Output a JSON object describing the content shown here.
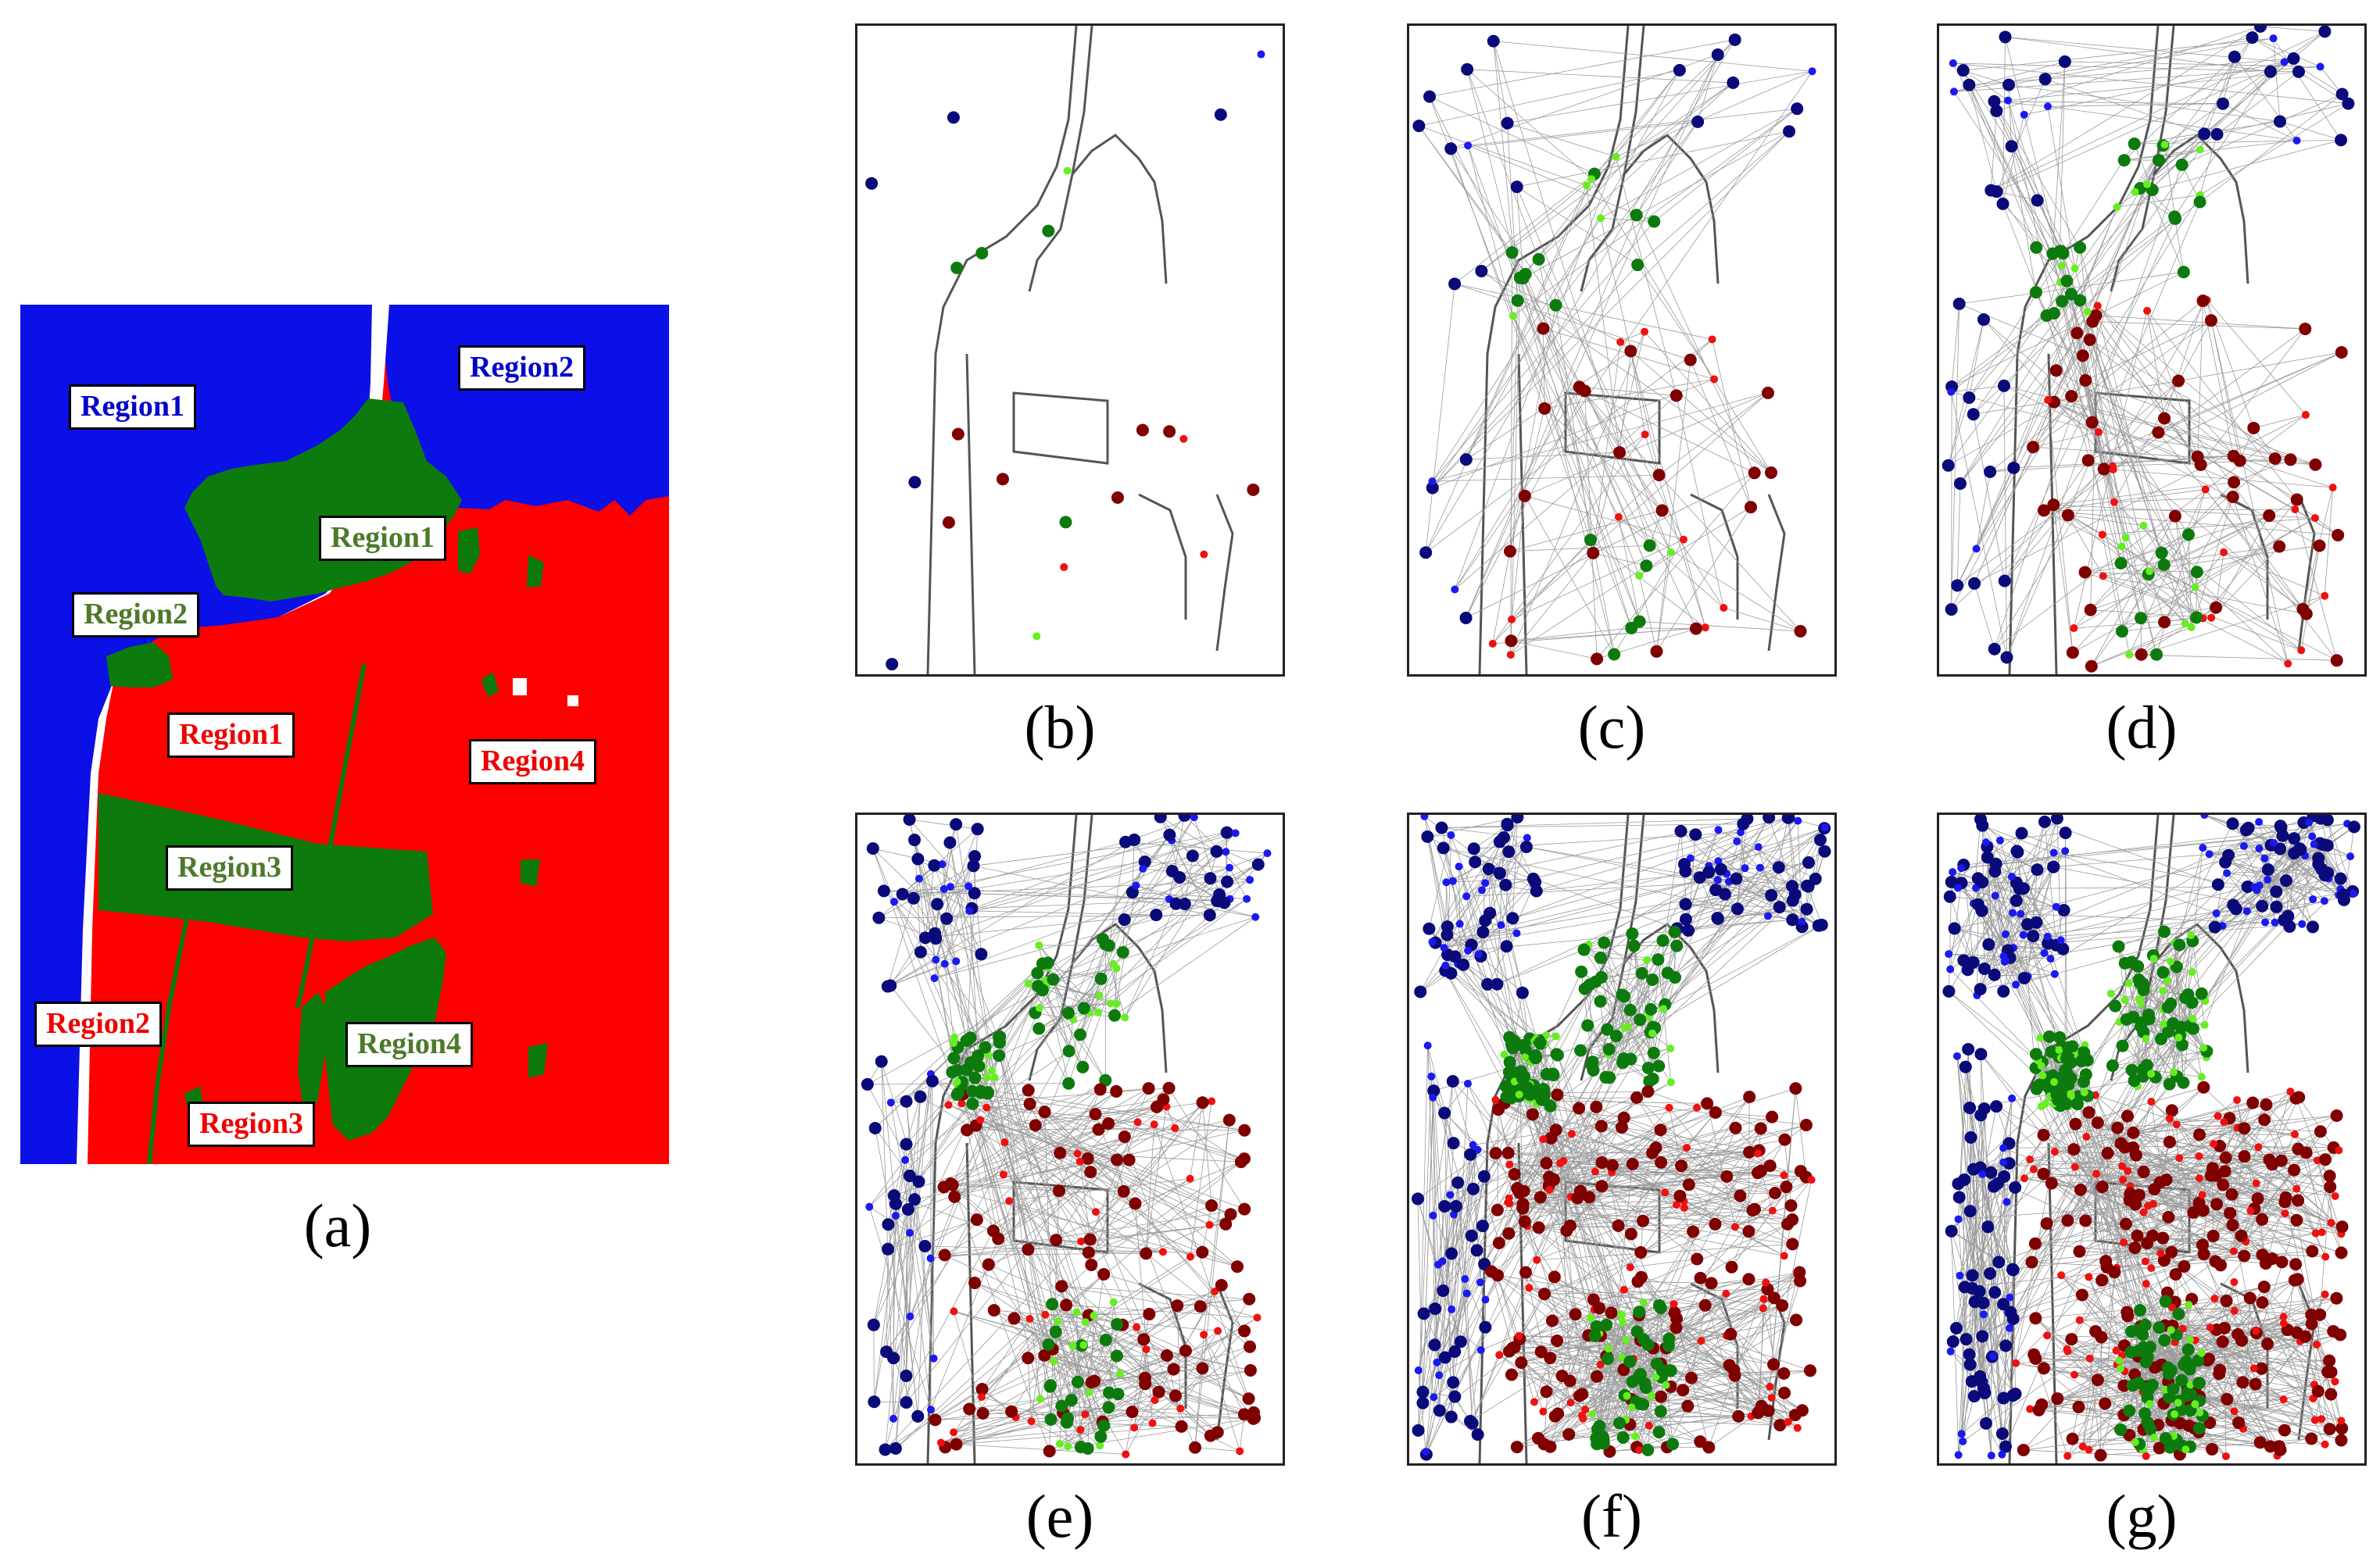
{
  "colors": {
    "blue": "#0a10e6",
    "red": "#ff0000",
    "green": "#0d7a0d",
    "navy": "#0a0a7a",
    "dark_red": "#800000",
    "light_green": "#66ee22",
    "blue_point": "#1a1aee",
    "red_point": "#ee1111",
    "edge": "#9a9a9a"
  },
  "panel_a": {
    "caption": "(a)",
    "labels": [
      {
        "id": "blue-region1",
        "text": "Region1",
        "color": "#0000cc"
      },
      {
        "id": "blue-region2",
        "text": "Region2",
        "color": "#0000cc"
      },
      {
        "id": "green-region1",
        "text": "Region1",
        "color": "#4d7a2a"
      },
      {
        "id": "green-region2",
        "text": "Region2",
        "color": "#4d7a2a"
      },
      {
        "id": "red-region1",
        "text": "Region1",
        "color": "#ee0000"
      },
      {
        "id": "red-region4",
        "text": "Region4",
        "color": "#ee0000"
      },
      {
        "id": "green-region3",
        "text": "Region3",
        "color": "#4d7a2a"
      },
      {
        "id": "red-region2",
        "text": "Region2",
        "color": "#ee0000"
      },
      {
        "id": "green-region4",
        "text": "Region4",
        "color": "#4d7a2a"
      },
      {
        "id": "red-region3",
        "text": "Region3",
        "color": "#ee0000"
      }
    ]
  },
  "panels": [
    {
      "id": "b",
      "caption": "(b)",
      "level": 0
    },
    {
      "id": "c",
      "caption": "(c)",
      "level": 1
    },
    {
      "id": "d",
      "caption": "(d)",
      "level": 2
    },
    {
      "id": "e",
      "caption": "(e)",
      "level": 3
    },
    {
      "id": "f",
      "caption": "(f)",
      "level": 4
    },
    {
      "id": "g",
      "caption": "(g)",
      "level": 5
    }
  ]
}
